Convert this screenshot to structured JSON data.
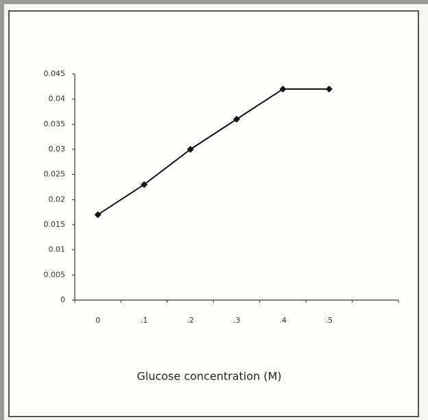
{
  "chart_data": {
    "type": "line",
    "x_label": "Glucose concentration (M)",
    "categories": [
      "0",
      ".1",
      ".2",
      ".3",
      ".4",
      ".5",
      null
    ],
    "values": [
      0.017,
      0.023,
      0.03,
      0.036,
      0.042,
      0.042,
      null
    ],
    "color": "#111111",
    "ylim": [
      0,
      0.045
    ],
    "yticks": [
      0,
      0.005,
      0.01,
      0.015,
      0.02,
      0.025,
      0.03,
      0.035,
      0.04,
      0.045
    ],
    "grid": false
  }
}
